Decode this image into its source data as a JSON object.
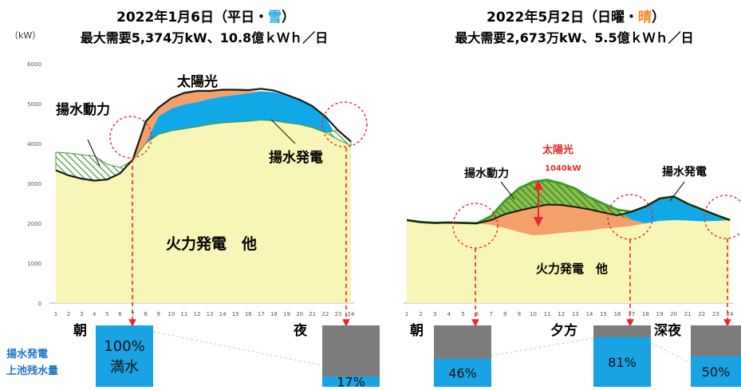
{
  "chart_data": [
    {
      "type": "area",
      "title": "2022年1月6日（平日・雪）",
      "title_prefix": "2022年1月6日（平日・",
      "title_weather": "雪",
      "title_suffix": "）",
      "subtitle": "最大需要5,374万kW、10.8億ｋＷｈ／日",
      "ylabel": "（kW）",
      "ylim": [
        0,
        6000
      ],
      "yticks": [
        0,
        1000,
        2000,
        3000,
        4000,
        5000,
        6000
      ],
      "x": [
        1,
        2,
        3,
        4,
        5,
        6,
        7,
        8,
        9,
        10,
        11,
        12,
        13,
        14,
        15,
        16,
        17,
        18,
        19,
        20,
        21,
        22,
        23,
        24
      ],
      "xtick_labels": [
        "1",
        "2",
        "3",
        "4",
        "5",
        "6",
        "7",
        "8",
        "9",
        "10",
        "11",
        "12",
        "13",
        "14",
        "15",
        "16",
        "17",
        "18",
        "19",
        "20",
        "21",
        "22",
        "23",
        "24"
      ],
      "series": [
        {
          "name": "火力発電　他",
          "values": [
            3330,
            3200,
            3120,
            3070,
            3100,
            3250,
            3580,
            4000,
            4230,
            4320,
            4370,
            4420,
            4480,
            4520,
            4540,
            4560,
            4590,
            4570,
            4520,
            4480,
            4400,
            4280,
            4100,
            3950
          ]
        },
        {
          "name": "揚水発電",
          "values": [
            0,
            0,
            0,
            0,
            0,
            0,
            0,
            0,
            450,
            560,
            610,
            620,
            640,
            660,
            680,
            700,
            720,
            720,
            680,
            620,
            540,
            400,
            0,
            0
          ]
        },
        {
          "name": "太陽光",
          "values": [
            0,
            0,
            0,
            0,
            0,
            0,
            0,
            550,
            230,
            260,
            290,
            270,
            200,
            170,
            130,
            60,
            0,
            0,
            0,
            0,
            0,
            0,
            0,
            0
          ]
        },
        {
          "name": "揚水動力",
          "values": [
            450,
            560,
            600,
            620,
            380,
            150,
            0,
            0,
            0,
            0,
            0,
            0,
            0,
            0,
            0,
            0,
            0,
            0,
            0,
            0,
            0,
            0,
            230,
            100
          ]
        }
      ],
      "demand": [
        3330,
        3200,
        3120,
        3070,
        3100,
        3250,
        3600,
        4550,
        4900,
        5140,
        5270,
        5320,
        5320,
        5350,
        5350,
        5340,
        5374,
        5330,
        5220,
        5100,
        4940,
        4680,
        4330,
        4050
      ],
      "area_labels": [
        "太陽光",
        "揚水動力",
        "揚水発電",
        "火力発電　他"
      ],
      "reservoir": {
        "legend": [
          "揚水発電",
          "上池残水量"
        ],
        "items": [
          {
            "time": "朝",
            "percent": 100,
            "label": "100%",
            "sublabel": "満水"
          },
          {
            "time": "夜",
            "percent": 17,
            "label": "17%"
          }
        ]
      }
    },
    {
      "type": "area",
      "title": "2022年5月2日（日曜・晴）",
      "title_prefix": "2022年5月2日（日曜・",
      "title_weather": "晴",
      "title_suffix": "）",
      "subtitle": "最大需要2,673万kW、5.5億ｋＷｈ／日",
      "x": [
        1,
        2,
        3,
        4,
        5,
        6,
        7,
        8,
        9,
        10,
        11,
        12,
        13,
        14,
        15,
        16,
        17,
        18,
        19,
        20,
        21,
        22,
        23,
        24
      ],
      "xtick_labels": [
        "1",
        "2",
        "3",
        "4",
        "5",
        "6",
        "7",
        "8",
        "9",
        "10",
        "11",
        "12",
        "13",
        "14",
        "15",
        "16",
        "17",
        "18",
        "19",
        "20",
        "21",
        "22",
        "23",
        "24"
      ],
      "series": [
        {
          "name": "火力発電　他",
          "values": [
            2080,
            2030,
            2010,
            2020,
            2010,
            2000,
            1960,
            1880,
            1780,
            1700,
            1720,
            1760,
            1790,
            1820,
            1870,
            1900,
            1930,
            2000,
            2060,
            2080,
            2070,
            2050,
            2060,
            2080
          ]
        },
        {
          "name": "太陽光",
          "values": [
            0,
            0,
            0,
            0,
            0,
            0,
            120,
            350,
            540,
            700,
            750,
            700,
            620,
            530,
            400,
            300,
            160,
            0,
            0,
            0,
            0,
            0,
            0,
            0
          ]
        },
        {
          "name": "揚水発電",
          "values": [
            0,
            0,
            0,
            0,
            0,
            0,
            0,
            0,
            0,
            0,
            0,
            0,
            0,
            0,
            0,
            0,
            200,
            420,
            560,
            590,
            420,
            300,
            150,
            0
          ]
        },
        {
          "name": "揚水動力",
          "values": [
            0,
            0,
            0,
            0,
            0,
            0,
            100,
            340,
            560,
            640,
            620,
            540,
            460,
            300,
            220,
            140,
            0,
            0,
            0,
            0,
            0,
            0,
            0,
            0
          ]
        }
      ],
      "demand": [
        2080,
        2030,
        2010,
        2020,
        2010,
        2000,
        2080,
        2230,
        2320,
        2400,
        2470,
        2460,
        2410,
        2350,
        2270,
        2200,
        2290,
        2420,
        2620,
        2673,
        2490,
        2350,
        2210,
        2080
      ],
      "area_labels": [
        "太陽光",
        "1040kW",
        "揚水動力",
        "揚水発電",
        "火力発電　他"
      ],
      "reservoir": {
        "items": [
          {
            "time": "朝",
            "percent": 46,
            "label": "46%"
          },
          {
            "time": "夕方",
            "percent": 81,
            "label": "81%"
          },
          {
            "time": "深夜",
            "percent": 50,
            "label": "50%"
          }
        ]
      }
    }
  ],
  "colors": {
    "thermal": "#f8f6b6",
    "pumped_gen": "#10a8e6",
    "solar": "#f3a06a",
    "pump_power": "#3f9a2c",
    "demand_line": "#1a1a1a",
    "snow": "#28a8e0",
    "sunny": "#f08a28",
    "arrow": "#e8262b",
    "box_gray": "#7c7c7c",
    "box_blue": "#19a3e4",
    "legend_blue": "#1e73c8"
  }
}
